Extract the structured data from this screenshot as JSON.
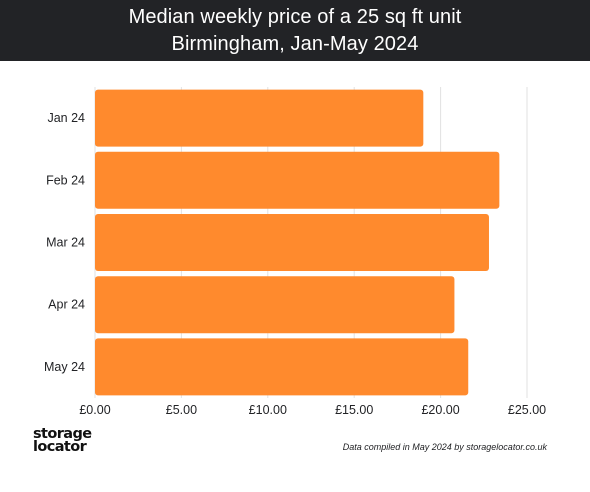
{
  "chart_data": {
    "type": "bar",
    "orientation": "horizontal",
    "title": "Median weekly price of a 25 sq ft unit",
    "subtitle": "Birmingham, Jan-May 2024",
    "categories": [
      "Jan 24",
      "Feb 24",
      "Mar 24",
      "Apr 24",
      "May 24"
    ],
    "values": [
      19.0,
      23.4,
      22.8,
      20.8,
      21.6
    ],
    "xlim": [
      0,
      25
    ],
    "xticks": [
      "£0.00",
      "£5.00",
      "£10.00",
      "£15.00",
      "£20.00",
      "£25.00"
    ],
    "xlabel": "",
    "ylabel": "",
    "grid": "vertical",
    "bar_color": "#FF8A2D"
  },
  "branding": {
    "logo_line1": "storage",
    "logo_line2": "locator"
  },
  "footnote": "Data compiled in May 2024 by storagelocator.co.uk"
}
